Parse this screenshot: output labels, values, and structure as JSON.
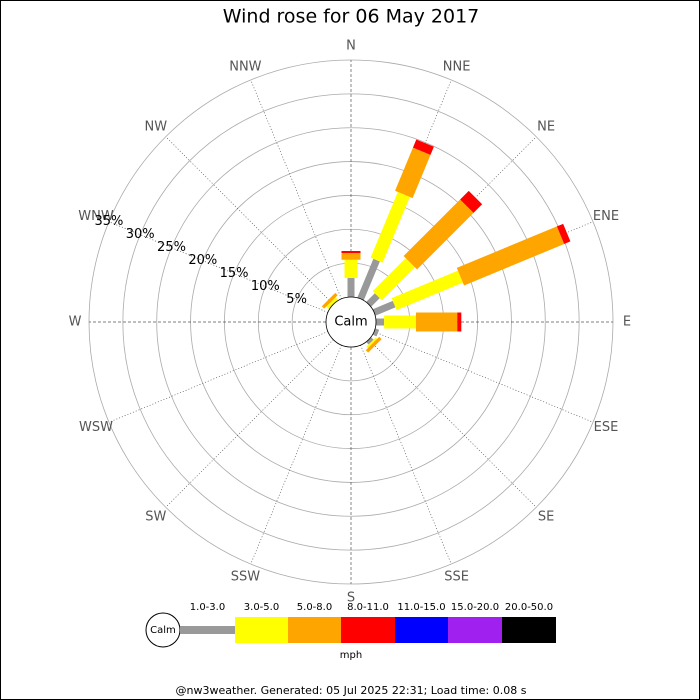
{
  "chart_data": {
    "type": "windrose",
    "title": "Wind rose for 06 May 2017",
    "categories": [
      "N",
      "NNE",
      "NE",
      "ENE",
      "E",
      "ESE",
      "SE",
      "SSE",
      "S",
      "SSW",
      "SW",
      "WSW",
      "W",
      "WNW",
      "NW",
      "NNW"
    ],
    "calm_label": "Calm",
    "unit_label": "mph",
    "footer": "@nw3weather. Generated: 05 Jul 2025 22:31; Load time: 0.08 s",
    "ylim": [
      0,
      35
    ],
    "yticks": [
      {
        "value": 5,
        "label": "5%"
      },
      {
        "value": 10,
        "label": "10%"
      },
      {
        "value": 15,
        "label": "15%"
      },
      {
        "value": 20,
        "label": "20%"
      },
      {
        "value": 25,
        "label": "25%"
      },
      {
        "value": 30,
        "label": "30%"
      },
      {
        "value": 35,
        "label": "35%"
      }
    ],
    "series": [
      {
        "name": "1.0-3.0",
        "color": "#999999",
        "values": [
          2.8,
          6.2,
          1.8,
          3.2,
          1.2,
          0.6,
          0.5,
          0,
          0,
          0,
          0,
          0,
          0,
          0,
          0,
          0
        ]
      },
      {
        "name": "3.0-5.0",
        "color": "#ffff00",
        "values": [
          2.7,
          10.5,
          6.9,
          10.6,
          4.7,
          0,
          0.3,
          0,
          0,
          0,
          0,
          0,
          0,
          0,
          0.5,
          0
        ]
      },
      {
        "name": "5.0-8.0",
        "color": "#ffa500",
        "values": [
          1.0,
          6.9,
          11.8,
          16,
          6.1,
          0,
          0.5,
          0,
          0,
          0,
          0,
          0,
          0,
          0,
          0.5,
          0
        ]
      },
      {
        "name": "8.0-11.0",
        "color": "#ff0000",
        "values": [
          0.3,
          1.3,
          1.8,
          1.0,
          0.6,
          0,
          0,
          0,
          0,
          0,
          0,
          0,
          0,
          0,
          0,
          0
        ]
      },
      {
        "name": "11.0-15.0",
        "color": "#0000ff",
        "values": [
          0,
          0,
          0,
          0,
          0,
          0,
          0,
          0,
          0,
          0,
          0,
          0,
          0,
          0,
          0,
          0
        ]
      },
      {
        "name": "15.0-20.0",
        "color": "#a020f0",
        "values": [
          0,
          0,
          0,
          0,
          0,
          0,
          0,
          0,
          0,
          0,
          0,
          0,
          0,
          0,
          0,
          0
        ]
      },
      {
        "name": "20.0-50.0",
        "color": "#000000",
        "values": [
          0,
          0,
          0,
          0,
          0,
          0,
          0,
          0,
          0,
          0,
          0,
          0,
          0,
          0,
          0,
          0
        ]
      }
    ]
  }
}
